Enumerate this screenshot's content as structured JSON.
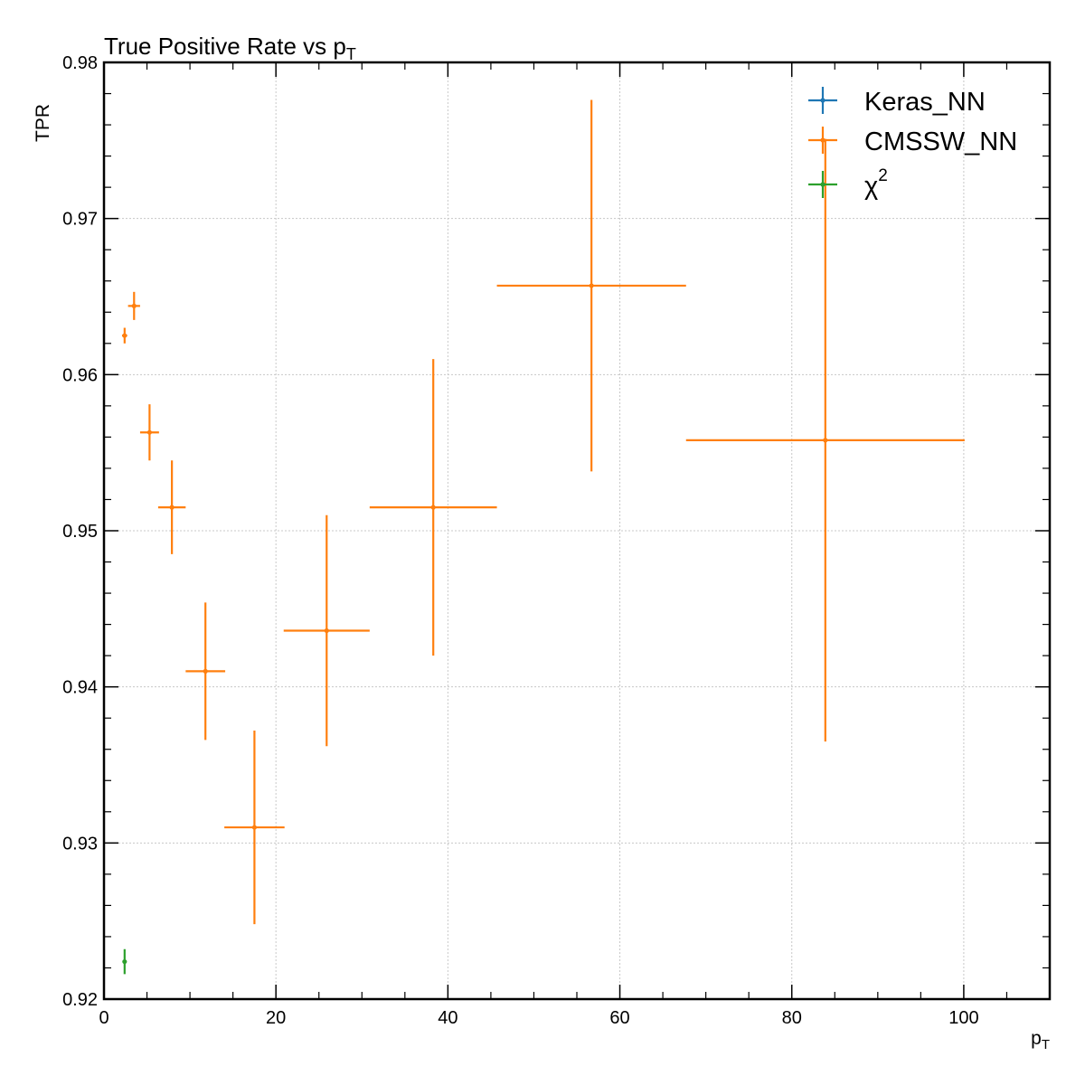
{
  "chart_data": {
    "type": "scatter",
    "title": "True Positive Rate vs p",
    "title_sub": "T",
    "xlabel": "p",
    "xlabel_sub": "T",
    "ylabel": "TPR",
    "xlim": [
      0,
      110
    ],
    "ylim": [
      0.92,
      0.98
    ],
    "xticks": [
      0,
      20,
      40,
      60,
      80,
      100
    ],
    "xtick_labels": [
      "0",
      "20",
      "40",
      "60",
      "80",
      "100"
    ],
    "yticks": [
      0.92,
      0.93,
      0.94,
      0.95,
      0.96,
      0.97,
      0.98
    ],
    "ytick_labels": [
      "0.92",
      "0.93",
      "0.94",
      "0.95",
      "0.96",
      "0.97",
      "0.98"
    ],
    "grid": true,
    "legend_position": "top-right",
    "series": [
      {
        "name": "Keras_NN",
        "label": "Keras_NN",
        "color": "#1f77b4",
        "points": []
      },
      {
        "name": "CMSSW_NN",
        "label": "CMSSW_NN",
        "color": "#ff7f0e",
        "points": [
          {
            "x": 2.4,
            "xerr": 0.3,
            "y": 0.9625,
            "yerr": 0.0005
          },
          {
            "x": 3.5,
            "xerr": 0.7,
            "y": 0.9644,
            "yerr": 0.0009
          },
          {
            "x": 5.3,
            "xerr": 1.1,
            "y": 0.9563,
            "yerr": 0.0018
          },
          {
            "x": 7.9,
            "xerr": 1.6,
            "y": 0.9515,
            "yerr": 0.003
          },
          {
            "x": 11.8,
            "xerr": 2.3,
            "y": 0.941,
            "yerr": 0.0044
          },
          {
            "x": 17.5,
            "xerr": 3.5,
            "y": 0.931,
            "yerr": 0.0062
          },
          {
            "x": 25.9,
            "xerr": 5.0,
            "y": 0.9436,
            "yerr": 0.0074
          },
          {
            "x": 38.3,
            "xerr": 7.4,
            "y": 0.9515,
            "yerr": 0.0095
          },
          {
            "x": 56.7,
            "xerr": 11.0,
            "y": 0.9657,
            "yerr": 0.0119
          },
          {
            "x": 83.9,
            "xerr": 16.2,
            "y": 0.9558,
            "yerr": 0.0193
          }
        ]
      },
      {
        "name": "chi2",
        "label": "χ",
        "label_sup": "2",
        "color": "#2ca02c",
        "points": [
          {
            "x": 2.4,
            "xerr": 0.2,
            "y": 0.9224,
            "yerr": 0.0008
          }
        ]
      }
    ]
  }
}
